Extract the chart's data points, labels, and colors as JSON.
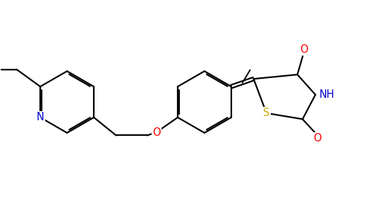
{
  "bg_color": "#ffffff",
  "atom_colors": {
    "N": "#0000cc",
    "O": "#ff0000",
    "S": "#ccaa00",
    "C": "#000000"
  },
  "bond_color": "#000000",
  "bond_width": 1.6,
  "dbo": 0.038,
  "fs": 10.5
}
